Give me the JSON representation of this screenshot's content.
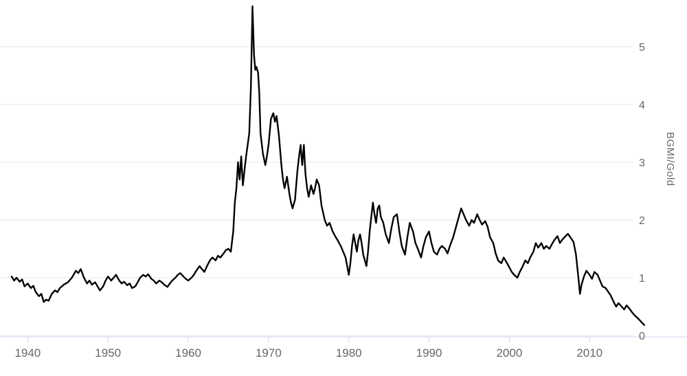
{
  "chart_data": {
    "type": "line",
    "title": "",
    "xlabel": "",
    "ylabel": "BGMI/Gold",
    "x_ticks": [
      1940,
      1950,
      1960,
      1970,
      1980,
      1990,
      2000,
      2010
    ],
    "y_ticks": [
      0,
      1,
      2,
      3,
      4,
      5
    ],
    "xlim": [
      1938,
      2017
    ],
    "ylim": [
      0,
      5.75
    ],
    "grid": true,
    "legend": false,
    "series": [
      {
        "name": "BGMI/Gold",
        "color": "#000000",
        "points": [
          [
            1938.0,
            1.02
          ],
          [
            1938.3,
            0.95
          ],
          [
            1938.6,
            1.0
          ],
          [
            1939.0,
            0.93
          ],
          [
            1939.3,
            0.97
          ],
          [
            1939.6,
            0.85
          ],
          [
            1940.0,
            0.9
          ],
          [
            1940.4,
            0.82
          ],
          [
            1940.7,
            0.86
          ],
          [
            1941.0,
            0.75
          ],
          [
            1941.4,
            0.68
          ],
          [
            1941.7,
            0.72
          ],
          [
            1942.0,
            0.58
          ],
          [
            1942.3,
            0.62
          ],
          [
            1942.6,
            0.6
          ],
          [
            1943.0,
            0.72
          ],
          [
            1943.4,
            0.78
          ],
          [
            1943.7,
            0.75
          ],
          [
            1944.0,
            0.82
          ],
          [
            1944.5,
            0.88
          ],
          [
            1945.0,
            0.92
          ],
          [
            1945.5,
            1.0
          ],
          [
            1946.0,
            1.12
          ],
          [
            1946.3,
            1.08
          ],
          [
            1946.6,
            1.15
          ],
          [
            1947.0,
            1.0
          ],
          [
            1947.4,
            0.9
          ],
          [
            1947.7,
            0.95
          ],
          [
            1948.0,
            0.88
          ],
          [
            1948.4,
            0.92
          ],
          [
            1948.7,
            0.85
          ],
          [
            1949.0,
            0.78
          ],
          [
            1949.4,
            0.85
          ],
          [
            1949.7,
            0.95
          ],
          [
            1950.0,
            1.02
          ],
          [
            1950.4,
            0.95
          ],
          [
            1950.7,
            1.0
          ],
          [
            1951.0,
            1.05
          ],
          [
            1951.4,
            0.95
          ],
          [
            1951.7,
            0.9
          ],
          [
            1952.0,
            0.93
          ],
          [
            1952.4,
            0.87
          ],
          [
            1952.7,
            0.9
          ],
          [
            1953.0,
            0.82
          ],
          [
            1953.4,
            0.85
          ],
          [
            1953.7,
            0.92
          ],
          [
            1954.0,
            1.0
          ],
          [
            1954.4,
            1.05
          ],
          [
            1954.7,
            1.02
          ],
          [
            1955.0,
            1.06
          ],
          [
            1955.4,
            0.98
          ],
          [
            1955.7,
            0.95
          ],
          [
            1956.0,
            0.9
          ],
          [
            1956.4,
            0.95
          ],
          [
            1956.7,
            0.92
          ],
          [
            1957.0,
            0.88
          ],
          [
            1957.4,
            0.84
          ],
          [
            1957.7,
            0.9
          ],
          [
            1958.0,
            0.95
          ],
          [
            1958.4,
            1.0
          ],
          [
            1958.7,
            1.05
          ],
          [
            1959.0,
            1.08
          ],
          [
            1959.4,
            1.02
          ],
          [
            1959.7,
            0.98
          ],
          [
            1960.0,
            0.95
          ],
          [
            1960.4,
            1.0
          ],
          [
            1960.7,
            1.05
          ],
          [
            1961.0,
            1.12
          ],
          [
            1961.4,
            1.2
          ],
          [
            1961.7,
            1.15
          ],
          [
            1962.0,
            1.1
          ],
          [
            1962.4,
            1.22
          ],
          [
            1962.7,
            1.3
          ],
          [
            1963.0,
            1.35
          ],
          [
            1963.4,
            1.3
          ],
          [
            1963.7,
            1.38
          ],
          [
            1964.0,
            1.35
          ],
          [
            1964.4,
            1.42
          ],
          [
            1964.7,
            1.48
          ],
          [
            1965.0,
            1.5
          ],
          [
            1965.3,
            1.45
          ],
          [
            1965.6,
            1.8
          ],
          [
            1965.8,
            2.3
          ],
          [
            1966.0,
            2.55
          ],
          [
            1966.2,
            3.0
          ],
          [
            1966.4,
            2.7
          ],
          [
            1966.6,
            3.1
          ],
          [
            1966.8,
            2.6
          ],
          [
            1967.0,
            2.85
          ],
          [
            1967.2,
            3.1
          ],
          [
            1967.4,
            3.3
          ],
          [
            1967.6,
            3.5
          ],
          [
            1967.8,
            4.3
          ],
          [
            1968.0,
            5.7
          ],
          [
            1968.2,
            4.85
          ],
          [
            1968.35,
            4.6
          ],
          [
            1968.5,
            4.65
          ],
          [
            1968.7,
            4.55
          ],
          [
            1968.85,
            4.2
          ],
          [
            1969.0,
            3.5
          ],
          [
            1969.3,
            3.15
          ],
          [
            1969.6,
            2.95
          ],
          [
            1969.8,
            3.1
          ],
          [
            1970.0,
            3.3
          ],
          [
            1970.3,
            3.75
          ],
          [
            1970.6,
            3.85
          ],
          [
            1970.8,
            3.7
          ],
          [
            1971.0,
            3.8
          ],
          [
            1971.3,
            3.45
          ],
          [
            1971.6,
            2.95
          ],
          [
            1971.8,
            2.7
          ],
          [
            1972.0,
            2.55
          ],
          [
            1972.3,
            2.75
          ],
          [
            1972.6,
            2.45
          ],
          [
            1972.8,
            2.3
          ],
          [
            1973.0,
            2.2
          ],
          [
            1973.3,
            2.35
          ],
          [
            1973.6,
            2.85
          ],
          [
            1973.8,
            3.1
          ],
          [
            1974.0,
            3.3
          ],
          [
            1974.2,
            2.95
          ],
          [
            1974.4,
            3.3
          ],
          [
            1974.6,
            2.8
          ],
          [
            1974.8,
            2.55
          ],
          [
            1975.0,
            2.4
          ],
          [
            1975.3,
            2.6
          ],
          [
            1975.6,
            2.45
          ],
          [
            1975.8,
            2.55
          ],
          [
            1976.0,
            2.7
          ],
          [
            1976.3,
            2.6
          ],
          [
            1976.6,
            2.25
          ],
          [
            1977.0,
            2.0
          ],
          [
            1977.3,
            1.9
          ],
          [
            1977.6,
            1.95
          ],
          [
            1978.0,
            1.8
          ],
          [
            1978.3,
            1.72
          ],
          [
            1978.6,
            1.65
          ],
          [
            1979.0,
            1.55
          ],
          [
            1979.3,
            1.45
          ],
          [
            1979.6,
            1.35
          ],
          [
            1979.8,
            1.2
          ],
          [
            1980.0,
            1.05
          ],
          [
            1980.2,
            1.25
          ],
          [
            1980.4,
            1.55
          ],
          [
            1980.6,
            1.75
          ],
          [
            1980.8,
            1.6
          ],
          [
            1981.0,
            1.45
          ],
          [
            1981.2,
            1.65
          ],
          [
            1981.4,
            1.75
          ],
          [
            1981.6,
            1.6
          ],
          [
            1981.8,
            1.4
          ],
          [
            1982.0,
            1.3
          ],
          [
            1982.2,
            1.2
          ],
          [
            1982.4,
            1.45
          ],
          [
            1982.6,
            1.8
          ],
          [
            1982.8,
            2.05
          ],
          [
            1983.0,
            2.3
          ],
          [
            1983.2,
            2.1
          ],
          [
            1983.4,
            1.95
          ],
          [
            1983.6,
            2.2
          ],
          [
            1983.8,
            2.25
          ],
          [
            1984.0,
            2.05
          ],
          [
            1984.3,
            1.95
          ],
          [
            1984.6,
            1.75
          ],
          [
            1985.0,
            1.6
          ],
          [
            1985.3,
            1.85
          ],
          [
            1985.6,
            2.05
          ],
          [
            1986.0,
            2.1
          ],
          [
            1986.3,
            1.8
          ],
          [
            1986.6,
            1.55
          ],
          [
            1987.0,
            1.4
          ],
          [
            1987.3,
            1.7
          ],
          [
            1987.6,
            1.95
          ],
          [
            1988.0,
            1.8
          ],
          [
            1988.3,
            1.6
          ],
          [
            1988.6,
            1.5
          ],
          [
            1989.0,
            1.35
          ],
          [
            1989.3,
            1.55
          ],
          [
            1989.6,
            1.7
          ],
          [
            1990.0,
            1.8
          ],
          [
            1990.3,
            1.6
          ],
          [
            1990.6,
            1.45
          ],
          [
            1991.0,
            1.4
          ],
          [
            1991.3,
            1.5
          ],
          [
            1991.6,
            1.55
          ],
          [
            1992.0,
            1.5
          ],
          [
            1992.3,
            1.42
          ],
          [
            1992.6,
            1.55
          ],
          [
            1993.0,
            1.7
          ],
          [
            1993.3,
            1.85
          ],
          [
            1993.6,
            2.0
          ],
          [
            1994.0,
            2.2
          ],
          [
            1994.3,
            2.1
          ],
          [
            1994.6,
            2.0
          ],
          [
            1995.0,
            1.9
          ],
          [
            1995.3,
            2.0
          ],
          [
            1995.6,
            1.95
          ],
          [
            1996.0,
            2.1
          ],
          [
            1996.3,
            2.0
          ],
          [
            1996.6,
            1.92
          ],
          [
            1997.0,
            1.98
          ],
          [
            1997.3,
            1.88
          ],
          [
            1997.6,
            1.7
          ],
          [
            1998.0,
            1.6
          ],
          [
            1998.3,
            1.42
          ],
          [
            1998.6,
            1.3
          ],
          [
            1999.0,
            1.25
          ],
          [
            1999.3,
            1.35
          ],
          [
            1999.6,
            1.28
          ],
          [
            2000.0,
            1.18
          ],
          [
            2000.3,
            1.1
          ],
          [
            2000.6,
            1.05
          ],
          [
            2001.0,
            1.0
          ],
          [
            2001.3,
            1.1
          ],
          [
            2001.6,
            1.18
          ],
          [
            2002.0,
            1.3
          ],
          [
            2002.3,
            1.25
          ],
          [
            2002.6,
            1.35
          ],
          [
            2003.0,
            1.45
          ],
          [
            2003.3,
            1.6
          ],
          [
            2003.6,
            1.52
          ],
          [
            2004.0,
            1.6
          ],
          [
            2004.3,
            1.5
          ],
          [
            2004.6,
            1.55
          ],
          [
            2005.0,
            1.5
          ],
          [
            2005.3,
            1.58
          ],
          [
            2005.6,
            1.65
          ],
          [
            2006.0,
            1.72
          ],
          [
            2006.3,
            1.6
          ],
          [
            2006.6,
            1.66
          ],
          [
            2007.0,
            1.72
          ],
          [
            2007.3,
            1.76
          ],
          [
            2007.6,
            1.7
          ],
          [
            2008.0,
            1.62
          ],
          [
            2008.3,
            1.4
          ],
          [
            2008.6,
            1.0
          ],
          [
            2008.8,
            0.72
          ],
          [
            2009.0,
            0.88
          ],
          [
            2009.3,
            1.02
          ],
          [
            2009.6,
            1.12
          ],
          [
            2010.0,
            1.05
          ],
          [
            2010.3,
            0.98
          ],
          [
            2010.6,
            1.1
          ],
          [
            2011.0,
            1.05
          ],
          [
            2011.3,
            0.95
          ],
          [
            2011.6,
            0.85
          ],
          [
            2012.0,
            0.82
          ],
          [
            2012.3,
            0.76
          ],
          [
            2012.6,
            0.7
          ],
          [
            2013.0,
            0.58
          ],
          [
            2013.3,
            0.5
          ],
          [
            2013.6,
            0.56
          ],
          [
            2014.0,
            0.5
          ],
          [
            2014.3,
            0.45
          ],
          [
            2014.6,
            0.52
          ],
          [
            2015.0,
            0.46
          ],
          [
            2015.3,
            0.4
          ],
          [
            2015.6,
            0.35
          ],
          [
            2016.0,
            0.3
          ],
          [
            2016.4,
            0.24
          ],
          [
            2016.8,
            0.18
          ]
        ]
      }
    ]
  },
  "style": {
    "background": "#ffffff",
    "grid_color": "#e6e6e6",
    "axis_line_color": "#ccd6eb",
    "label_color": "#666666",
    "series_color": "#000000"
  }
}
